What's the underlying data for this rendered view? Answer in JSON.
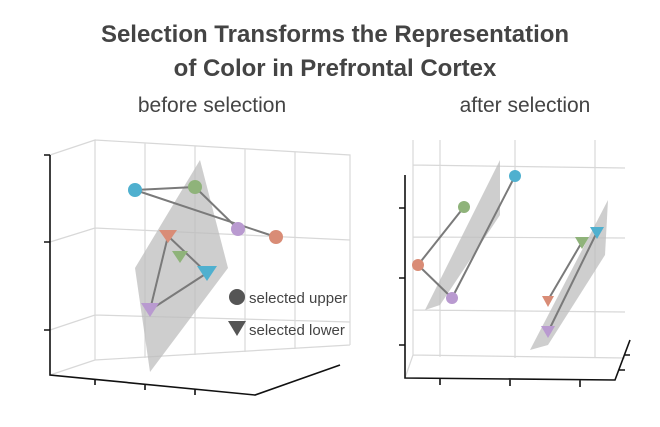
{
  "header": {
    "title": [
      "Selection Transforms the Representation",
      "of Color in Prefrontal Cortex"
    ]
  },
  "panels": [
    {
      "label": "before selection"
    },
    {
      "label": "after selection"
    }
  ],
  "legend": [
    {
      "label": "selected upper"
    },
    {
      "label": "selected lower"
    }
  ]
}
